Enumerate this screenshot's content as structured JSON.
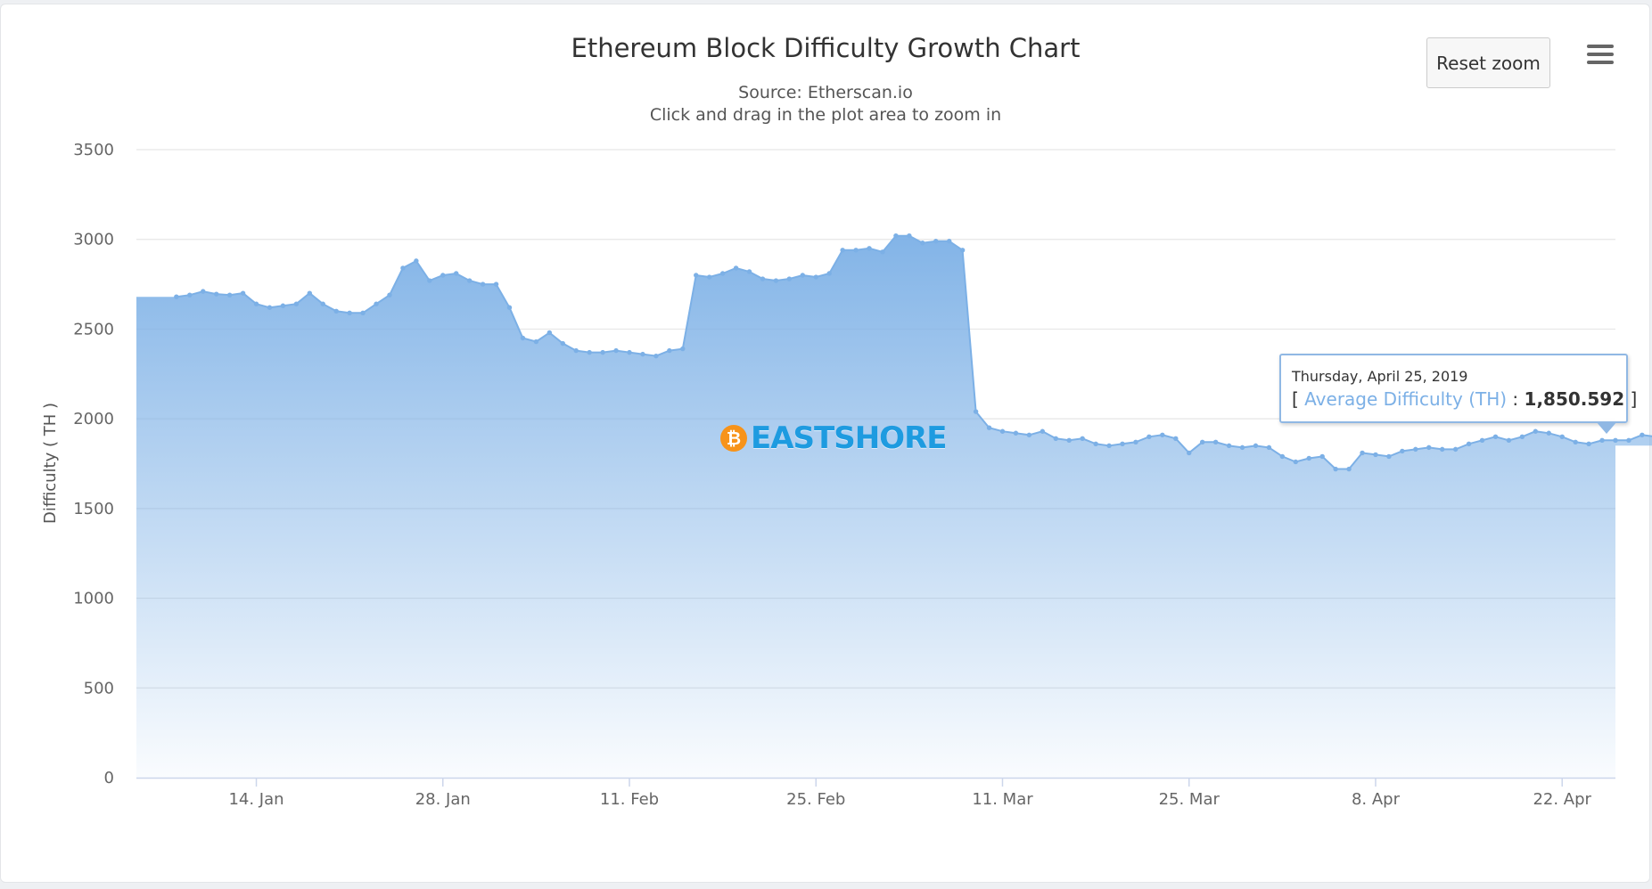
{
  "chart_data": {
    "type": "area",
    "title": "Ethereum Block Difficulty Growth Chart",
    "subtitles": [
      "Source: Etherscan.io",
      "Click and drag in the plot area to zoom in"
    ],
    "ylabel": "Difficulty ( TH )",
    "xlabel": "",
    "ylim": [
      0,
      3500
    ],
    "yticks": [
      "0",
      "500",
      "1000",
      "1500",
      "2000",
      "2500",
      "3000",
      "3500"
    ],
    "x_range": [
      "2019-01-05",
      "2019-04-26"
    ],
    "xticks": [
      {
        "date": "2019-01-14",
        "label": "14. Jan"
      },
      {
        "date": "2019-01-28",
        "label": "28. Jan"
      },
      {
        "date": "2019-02-11",
        "label": "11. Feb"
      },
      {
        "date": "2019-02-25",
        "label": "25. Feb"
      },
      {
        "date": "2019-03-11",
        "label": "11. Mar"
      },
      {
        "date": "2019-03-25",
        "label": "25. Mar"
      },
      {
        "date": "2019-04-08",
        "label": "8. Apr"
      },
      {
        "date": "2019-04-22",
        "label": "22. Apr"
      }
    ],
    "grid": true,
    "legend": "none",
    "series": [
      {
        "name": "Average Difficulty (TH)",
        "color": "#7cb0e6",
        "start_date": "2019-01-08",
        "values": [
          2680,
          2690,
          2710,
          2695,
          2690,
          2700,
          2640,
          2620,
          2630,
          2640,
          2700,
          2640,
          2600,
          2590,
          2590,
          2640,
          2690,
          2840,
          2880,
          2770,
          2800,
          2810,
          2770,
          2750,
          2750,
          2620,
          2450,
          2430,
          2480,
          2420,
          2380,
          2370,
          2370,
          2380,
          2370,
          2360,
          2350,
          2380,
          2390,
          2800,
          2790,
          2810,
          2840,
          2820,
          2780,
          2770,
          2780,
          2800,
          2790,
          2810,
          2940,
          2940,
          2950,
          2930,
          3020,
          3020,
          2980,
          2990,
          2990,
          2940,
          2040,
          1950,
          1930,
          1920,
          1910,
          1930,
          1890,
          1880,
          1890,
          1860,
          1850,
          1860,
          1870,
          1900,
          1910,
          1890,
          1810,
          1870,
          1870,
          1850,
          1840,
          1850,
          1840,
          1790,
          1760,
          1780,
          1790,
          1720,
          1720,
          1810,
          1800,
          1790,
          1820,
          1830,
          1840,
          1830,
          1830,
          1860,
          1880,
          1900,
          1880,
          1900,
          1930,
          1920,
          1900,
          1870,
          1860,
          1880,
          1880,
          1880,
          1910,
          1900,
          1850.592
        ]
      }
    ],
    "tooltip": {
      "date": "Thursday, April 25, 2019",
      "series": "Average Difficulty (TH)",
      "value": "1,850.592"
    }
  },
  "controls": {
    "reset_zoom_label": "Reset zoom",
    "menu_icon": "hamburger-menu-icon"
  },
  "watermark": {
    "logo_icon": "bitcoin-coin-icon",
    "coin_glyph": "₿",
    "text": "EASTSHORE"
  }
}
